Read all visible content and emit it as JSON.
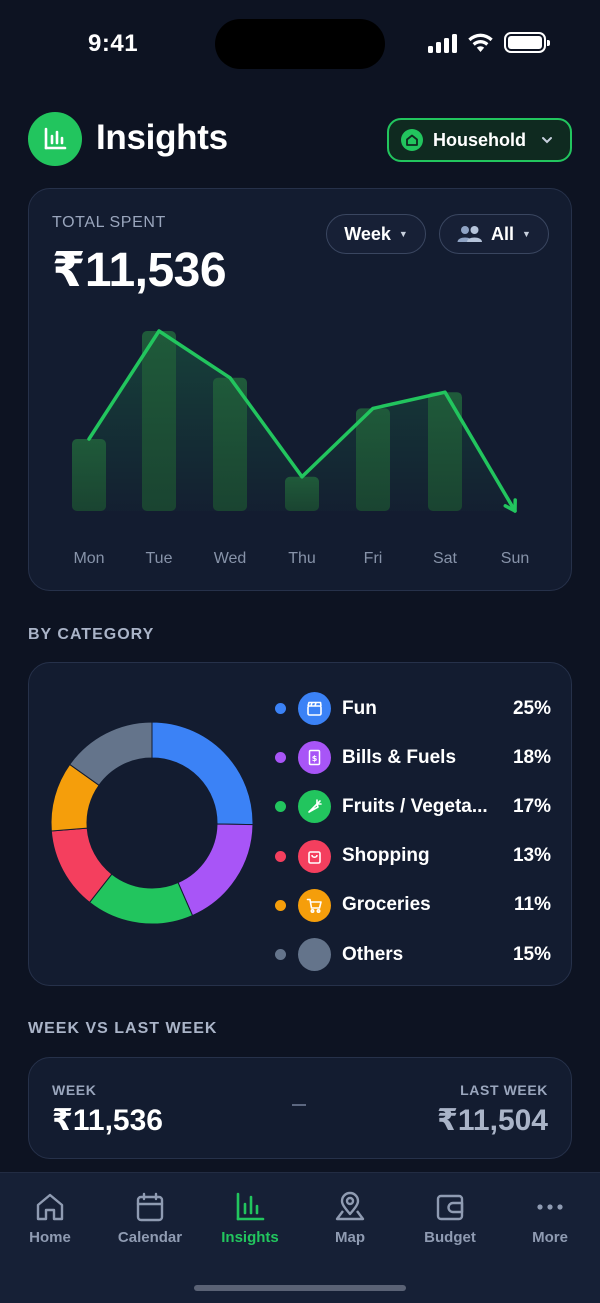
{
  "status_bar": {
    "time": "9:41"
  },
  "header": {
    "title": "Insights",
    "scope_button": "Household"
  },
  "spending": {
    "label": "TOTAL SPENT",
    "total": "₹11,536",
    "period_filter": "Week",
    "member_filter": "All"
  },
  "chart_data": {
    "type": "bar",
    "categories": [
      "Mon",
      "Tue",
      "Wed",
      "Thu",
      "Fri",
      "Sat",
      "Sun"
    ],
    "values": [
      0.4,
      1.0,
      0.74,
      0.19,
      0.57,
      0.66,
      0.0
    ],
    "ylim": [
      0,
      1
    ],
    "overlay_line": true,
    "color": "#22c55e",
    "xlabel": "",
    "ylabel": "",
    "title": ""
  },
  "category_section": {
    "title": "BY CATEGORY",
    "chart_data": {
      "type": "pie",
      "categories": [
        "Fun",
        "Bills & Fuels",
        "Fruits / Vegeta...",
        "Shopping",
        "Groceries",
        "Others"
      ],
      "values": [
        25,
        18,
        17,
        13,
        11,
        15
      ],
      "colors": [
        "#3b82f6",
        "#a855f7",
        "#22c55e",
        "#f43f5e",
        "#f59e0b",
        "#64748b"
      ]
    },
    "items": [
      {
        "name": "Fun",
        "percent": "25%",
        "color": "#3b82f6",
        "icon": "clapperboard-icon"
      },
      {
        "name": "Bills & Fuels",
        "percent": "18%",
        "color": "#a855f7",
        "icon": "bill-icon"
      },
      {
        "name": "Fruits / Vegeta...",
        "percent": "17%",
        "color": "#22c55e",
        "icon": "carrot-icon"
      },
      {
        "name": "Shopping",
        "percent": "13%",
        "color": "#f43f5e",
        "icon": "shopping-bag-icon"
      },
      {
        "name": "Groceries",
        "percent": "11%",
        "color": "#f59e0b",
        "icon": "cart-icon"
      },
      {
        "name": "Others",
        "percent": "15%",
        "color": "#64748b",
        "icon": ""
      }
    ]
  },
  "comparison": {
    "title": "WEEK VS LAST WEEK",
    "current_label": "WEEK",
    "current_value": "₹11,536",
    "previous_label": "LAST WEEK",
    "previous_value": "₹11,504"
  },
  "tab_bar": {
    "tabs": [
      {
        "label": "Home",
        "icon": "home-icon"
      },
      {
        "label": "Calendar",
        "icon": "calendar-icon"
      },
      {
        "label": "Insights",
        "icon": "bar-chart-icon",
        "active": true
      },
      {
        "label": "Map",
        "icon": "map-pin-icon"
      },
      {
        "label": "Budget",
        "icon": "wallet-icon"
      },
      {
        "label": "More",
        "icon": "more-icon"
      }
    ]
  }
}
